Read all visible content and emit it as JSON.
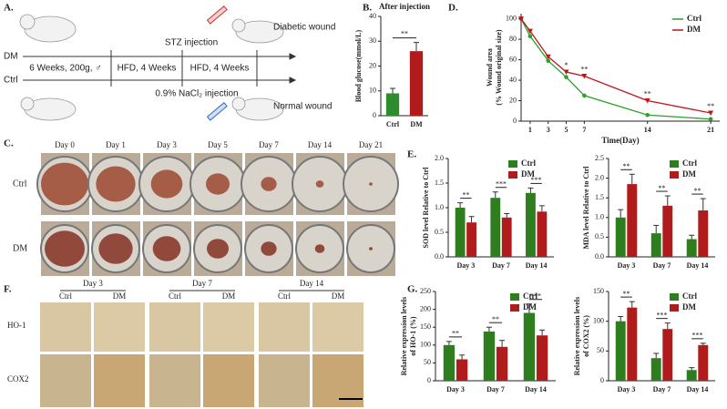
{
  "panels": {
    "A": {
      "label": "A.",
      "stz": "STZ injection",
      "diabetic": "Diabetic wound",
      "dm": "DM",
      "ctrl": "Ctrl",
      "timeline": [
        "6 Weeks, 200g, ♂",
        "HFD, 4 Weeks",
        "HFD, 4 Weeks"
      ],
      "nacl": "0.9% NaCl₂ injection",
      "normal": "Normal wound"
    },
    "C": {
      "label": "C.",
      "days": [
        "Day 0",
        "Day 1",
        "Day 3",
        "Day 5",
        "Day 7",
        "Day 14",
        "Day 21"
      ],
      "rows": [
        "Ctrl",
        "DM"
      ]
    },
    "F": {
      "label": "F.",
      "days": [
        "Day 3",
        "Day 7",
        "Day 14"
      ],
      "groups": [
        "Ctrl",
        "DM"
      ],
      "rows": [
        "HO-1",
        "COX2"
      ]
    }
  },
  "chart_data": [
    {
      "type": "bar",
      "label": "B.",
      "title": "After injection",
      "ylabel": [
        "Blood glucose(mmol/L)"
      ],
      "categories": [
        "Ctrl",
        "DM"
      ],
      "values": [
        9,
        26
      ],
      "errors": [
        2,
        3.5
      ],
      "colors": [
        "#2e8b2e",
        "#b01c1c"
      ],
      "annotation": "**",
      "ylim": [
        0,
        40
      ],
      "yticks": [
        0,
        10,
        20,
        30,
        40
      ]
    },
    {
      "type": "line",
      "label": "D.",
      "xlabel": "Time(Day)",
      "ylabel": [
        "Wound area",
        "(% Wound original size)"
      ],
      "x": [
        0,
        1,
        3,
        5,
        7,
        14,
        21
      ],
      "series": [
        {
          "name": "Ctrl",
          "color": "#2ca02c",
          "marker": "o",
          "values": [
            100,
            83,
            59,
            43,
            25,
            6,
            2
          ]
        },
        {
          "name": "DM",
          "color": "#c0141c",
          "marker": "v",
          "values": [
            100,
            88,
            63,
            48,
            44,
            20,
            8
          ]
        }
      ],
      "annotations": [
        {
          "x": 5,
          "text": "*"
        },
        {
          "x": 7,
          "text": "**"
        },
        {
          "x": 14,
          "text": "**"
        },
        {
          "x": 21,
          "text": "**"
        }
      ],
      "xlim": [
        0,
        22
      ],
      "xticks": [
        1,
        3,
        5,
        7,
        14,
        21
      ],
      "ylim": [
        0,
        105
      ],
      "yticks": [
        0,
        20,
        40,
        60,
        80,
        100
      ],
      "legend": "upper right"
    },
    {
      "type": "bar",
      "label": "E.",
      "ylabel": [
        "SOD level Relative to Ctrl"
      ],
      "categories": [
        "Day 3",
        "Day 7",
        "Day 14"
      ],
      "series": [
        {
          "name": "Ctrl",
          "color": "#2e7d1e",
          "values": [
            1.0,
            1.2,
            1.3
          ],
          "errors": [
            0.1,
            0.12,
            0.1
          ]
        },
        {
          "name": "DM",
          "color": "#b01c1c",
          "values": [
            0.7,
            0.8,
            0.92
          ],
          "errors": [
            0.12,
            0.08,
            0.12
          ]
        }
      ],
      "annotations": [
        "**",
        "***",
        "***"
      ],
      "ylim": [
        0,
        2.0
      ],
      "yticks": [
        {
          "value": 0,
          "label": "0.0"
        },
        {
          "value": 0.5,
          "label": "0.5"
        },
        {
          "value": 1,
          "label": "1.0"
        },
        {
          "value": 1.5,
          "label": "1.5"
        },
        {
          "value": 2,
          "label": "2.0"
        }
      ],
      "legend": "upper right"
    },
    {
      "type": "bar",
      "ylabel": [
        "MDA level Relative to Ctrl"
      ],
      "categories": [
        "Day 3",
        "Day 7",
        "Day 14"
      ],
      "series": [
        {
          "name": "Ctrl",
          "color": "#2e7d1e",
          "values": [
            1.0,
            0.6,
            0.45
          ],
          "errors": [
            0.2,
            0.2,
            0.1
          ]
        },
        {
          "name": "DM",
          "color": "#b01c1c",
          "values": [
            1.85,
            1.3,
            1.18
          ],
          "errors": [
            0.25,
            0.25,
            0.3
          ]
        }
      ],
      "annotations": [
        "**",
        "**",
        "**"
      ],
      "ylim": [
        0,
        2.5
      ],
      "yticks": [
        {
          "value": 0,
          "label": "0.0"
        },
        {
          "value": 0.5,
          "label": "0.5"
        },
        {
          "value": 1,
          "label": "1.0"
        },
        {
          "value": 1.5,
          "label": "1.5"
        },
        {
          "value": 2,
          "label": "2.0"
        },
        {
          "value": 2.5,
          "label": "2.5"
        }
      ],
      "legend": "upper right"
    },
    {
      "type": "bar",
      "label": "G.",
      "ylabel": [
        "Relative expression levels",
        "of HO-1 (%)"
      ],
      "categories": [
        "Day 3",
        "Day 7",
        "Day 14"
      ],
      "series": [
        {
          "name": "Ctrl",
          "color": "#2e7d1e",
          "values": [
            100,
            138,
            190
          ],
          "errors": [
            10,
            12,
            25
          ]
        },
        {
          "name": "DM",
          "color": "#b01c1c",
          "values": [
            60,
            95,
            127
          ],
          "errors": [
            12,
            18,
            15
          ]
        }
      ],
      "annotations": [
        "**",
        "**",
        "***"
      ],
      "ylim": [
        0,
        250
      ],
      "yticks": [
        0,
        50,
        100,
        150,
        200,
        250
      ],
      "legend": "upper right"
    },
    {
      "type": "bar",
      "ylabel": [
        "Relative expression levels",
        "of COX2 (%)"
      ],
      "categories": [
        "Day 3",
        "Day 7",
        "Day 14"
      ],
      "series": [
        {
          "name": "Ctrl",
          "color": "#2e7d1e",
          "values": [
            100,
            38,
            18
          ],
          "errors": [
            8,
            8,
            4
          ]
        },
        {
          "name": "DM",
          "color": "#b01c1c",
          "values": [
            123,
            87,
            60
          ],
          "errors": [
            10,
            10,
            3
          ]
        }
      ],
      "annotations": [
        "**",
        "***",
        "***"
      ],
      "ylim": [
        0,
        150
      ],
      "yticks": [
        0,
        50,
        100,
        150
      ],
      "legend": "upper right"
    }
  ]
}
